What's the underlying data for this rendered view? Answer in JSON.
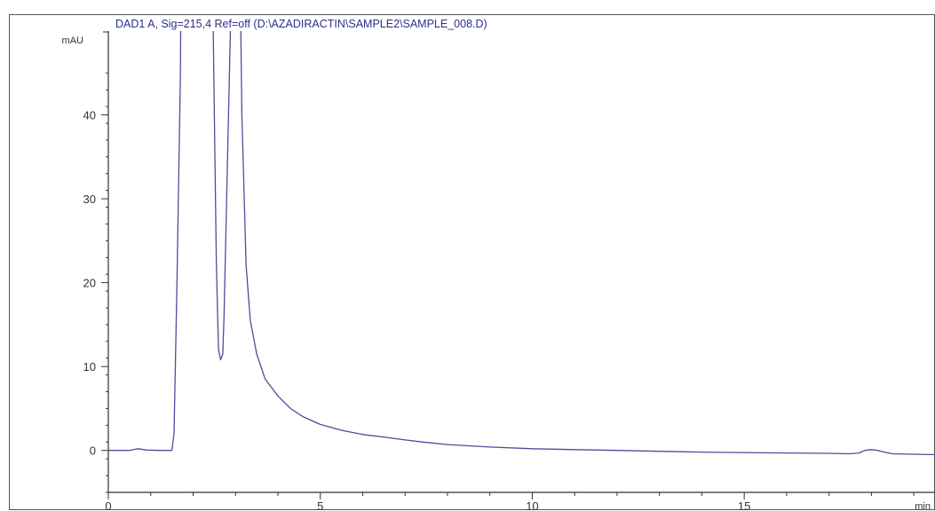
{
  "chart_data": {
    "type": "line",
    "title": "DAD1 A, Sig=215,4 Ref=off (D:\\AZADIRACTIN\\SAMPLE2\\SAMPLE_008.D)",
    "xlabel": "min",
    "ylabel": "mAU",
    "xlim": [
      0,
      19.5
    ],
    "ylim": [
      -5,
      50
    ],
    "x_ticks": [
      0,
      5,
      10,
      15
    ],
    "y_ticks": [
      0,
      10,
      20,
      30,
      40
    ],
    "x_tick_labels": [
      "0",
      "5",
      "10",
      "15"
    ],
    "y_tick_labels": [
      "0",
      "10",
      "20",
      "30",
      "40"
    ],
    "grid": false,
    "series": [
      {
        "color": "#4a4e9c",
        "x": [
          0,
          0.5,
          0.7,
          0.9,
          1.2,
          1.5,
          1.55,
          1.62,
          1.7,
          1.72,
          2.45,
          2.5,
          2.55,
          2.6,
          2.65,
          2.7,
          2.73,
          2.9,
          3.1,
          3.15,
          3.25,
          3.35,
          3.5,
          3.7,
          4.0,
          4.3,
          4.6,
          5.0,
          5.5,
          6.0,
          6.5,
          7.0,
          7.5,
          8.0,
          9.0,
          10.0,
          11.0,
          12.0,
          13.0,
          14.0,
          15.0,
          16.0,
          17.0,
          17.5,
          17.7,
          17.85,
          18.0,
          18.15,
          18.3,
          18.5,
          19.0,
          19.5
        ],
        "y": [
          0,
          0,
          0.2,
          0.05,
          0,
          0,
          2,
          20,
          45,
          60,
          60,
          40,
          22,
          12,
          10.8,
          11.5,
          16,
          55,
          60,
          40,
          22,
          15.5,
          11.5,
          8.5,
          6.5,
          5,
          4,
          3.1,
          2.4,
          1.9,
          1.6,
          1.25,
          0.95,
          0.7,
          0.4,
          0.2,
          0.1,
          0,
          -0.1,
          -0.2,
          -0.25,
          -0.3,
          -0.35,
          -0.4,
          -0.3,
          0,
          0.1,
          0,
          -0.2,
          -0.4,
          -0.45,
          -0.5
        ]
      }
    ]
  }
}
